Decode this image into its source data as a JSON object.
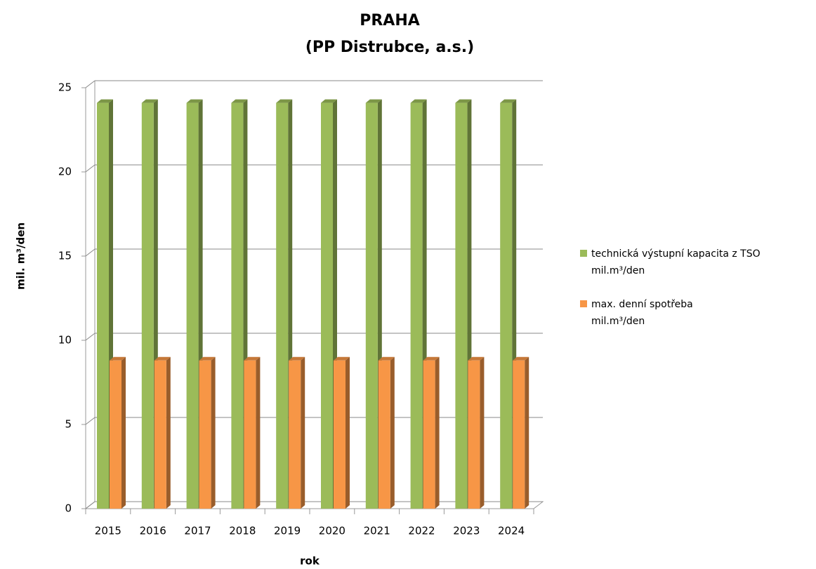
{
  "chart_data": {
    "type": "bar3d",
    "title": [
      "PRAHA",
      "(PP Distrubce, a.s.)"
    ],
    "x_label": "rok",
    "y_label": "mil. m³/den",
    "categories": [
      "2015",
      "2016",
      "2017",
      "2018",
      "2019",
      "2020",
      "2021",
      "2022",
      "2023",
      "2024"
    ],
    "series": [
      {
        "name": "technická výstupní kapacita z TSO mil.m³/den",
        "color": "#9bbb59",
        "values": [
          24.1,
          24.1,
          24.1,
          24.1,
          24.1,
          24.1,
          24.1,
          24.1,
          24.1,
          24.1
        ]
      },
      {
        "name": "max. denní spotřeba mil.m³/den",
        "color": "#f79646",
        "values": [
          8.8,
          8.8,
          8.8,
          8.8,
          8.8,
          8.8,
          8.8,
          8.8,
          8.8,
          8.8
        ]
      }
    ],
    "ylim": [
      0,
      25
    ],
    "yticks": [
      0,
      5,
      10,
      15,
      20,
      25
    ],
    "grid": true,
    "legend": "right"
  }
}
